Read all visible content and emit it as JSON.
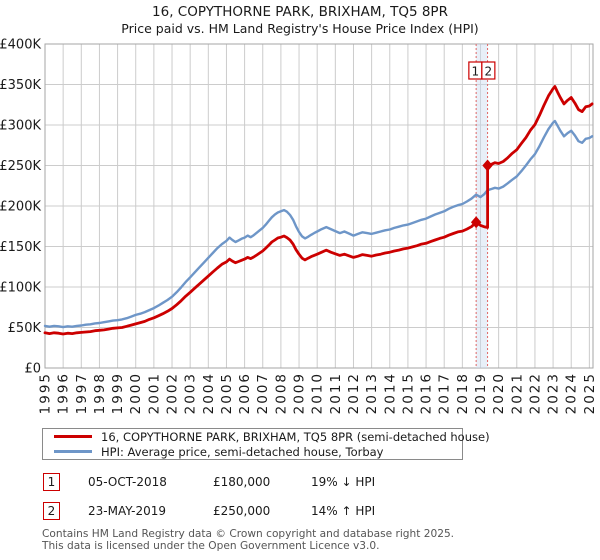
{
  "title": "16, COPYTHORNE PARK, BRIXHAM, TQ5 8PR",
  "subtitle": "Price paid vs. HM Land Registry's House Price Index (HPI)",
  "chart_data": {
    "type": "line",
    "title": "16, COPYTHORNE PARK, BRIXHAM, TQ5 8PR",
    "subtitle": "Price paid vs. HM Land Registry's House Price Index (HPI)",
    "grid": true,
    "grid_color": "#cccccc",
    "border_color": "#a6a6a6",
    "legend_position": "bottom",
    "x_axis": {
      "range": [
        1995,
        2025.2
      ],
      "ticks": [
        1995,
        1996,
        1997,
        1998,
        1999,
        2000,
        2001,
        2002,
        2003,
        2004,
        2005,
        2006,
        2007,
        2008,
        2009,
        2010,
        2011,
        2012,
        2013,
        2014,
        2015,
        2016,
        2017,
        2018,
        2019,
        2020,
        2021,
        2022,
        2023,
        2024,
        2025
      ]
    },
    "y_axis": {
      "range": [
        0,
        400
      ],
      "unit": "GBP thousands",
      "tick_values": [
        0,
        50,
        100,
        150,
        200,
        250,
        300,
        350,
        400
      ],
      "tick_labels": [
        "£0",
        "£50K",
        "£100K",
        "£150K",
        "£200K",
        "£250K",
        "£300K",
        "£350K",
        "£400K"
      ]
    },
    "series": [
      {
        "name": "16, COPYTHORNE PARK, BRIXHAM, TQ5 8PR (semi-detached house)",
        "color": "#cc0000",
        "width": 2.8,
        "points": [
          [
            1995.0,
            43.5
          ],
          [
            1995.25,
            42.5
          ],
          [
            1995.5,
            43.5
          ],
          [
            1995.75,
            43
          ],
          [
            1996.0,
            42
          ],
          [
            1996.25,
            43
          ],
          [
            1996.5,
            42.5
          ],
          [
            1996.75,
            43.5
          ],
          [
            1997.0,
            44
          ],
          [
            1997.25,
            44.5
          ],
          [
            1997.5,
            45
          ],
          [
            1997.75,
            46
          ],
          [
            1998.0,
            46.5
          ],
          [
            1998.25,
            47
          ],
          [
            1998.5,
            48
          ],
          [
            1998.75,
            49
          ],
          [
            1999.0,
            49.5
          ],
          [
            1999.25,
            50
          ],
          [
            1999.5,
            51.5
          ],
          [
            1999.75,
            53
          ],
          [
            2000.0,
            54.5
          ],
          [
            2000.25,
            56
          ],
          [
            2000.5,
            57.5
          ],
          [
            2000.75,
            60
          ],
          [
            2001.0,
            62
          ],
          [
            2001.25,
            64.5
          ],
          [
            2001.5,
            67
          ],
          [
            2001.75,
            70
          ],
          [
            2002.0,
            73.5
          ],
          [
            2002.25,
            78
          ],
          [
            2002.5,
            83
          ],
          [
            2002.75,
            88.5
          ],
          [
            2003.0,
            93.5
          ],
          [
            2003.25,
            98.5
          ],
          [
            2003.5,
            103.5
          ],
          [
            2003.75,
            108.5
          ],
          [
            2004.0,
            113.5
          ],
          [
            2004.25,
            118.5
          ],
          [
            2004.5,
            123.5
          ],
          [
            2004.75,
            128
          ],
          [
            2005.0,
            131
          ],
          [
            2005.17,
            134.5
          ],
          [
            2005.33,
            132
          ],
          [
            2005.5,
            130
          ],
          [
            2005.67,
            131.5
          ],
          [
            2005.83,
            133
          ],
          [
            2006.0,
            134.5
          ],
          [
            2006.17,
            136.5
          ],
          [
            2006.33,
            135
          ],
          [
            2006.5,
            137
          ],
          [
            2006.67,
            139.5
          ],
          [
            2006.83,
            142
          ],
          [
            2007.0,
            144.5
          ],
          [
            2007.17,
            148
          ],
          [
            2007.33,
            151.5
          ],
          [
            2007.5,
            155.5
          ],
          [
            2007.67,
            158
          ],
          [
            2007.83,
            160.5
          ],
          [
            2008.0,
            161.5
          ],
          [
            2008.17,
            163
          ],
          [
            2008.33,
            161
          ],
          [
            2008.5,
            158
          ],
          [
            2008.67,
            153
          ],
          [
            2008.83,
            146
          ],
          [
            2009.0,
            140.5
          ],
          [
            2009.17,
            135.5
          ],
          [
            2009.33,
            133.5
          ],
          [
            2009.5,
            135.5
          ],
          [
            2009.67,
            137.5
          ],
          [
            2009.83,
            139
          ],
          [
            2010.0,
            140.5
          ],
          [
            2010.25,
            143
          ],
          [
            2010.5,
            145.5
          ],
          [
            2010.75,
            143
          ],
          [
            2011.0,
            141
          ],
          [
            2011.25,
            139
          ],
          [
            2011.5,
            140.5
          ],
          [
            2011.75,
            138.5
          ],
          [
            2012.0,
            136.5
          ],
          [
            2012.25,
            138
          ],
          [
            2012.5,
            140
          ],
          [
            2012.75,
            139
          ],
          [
            2013.0,
            138
          ],
          [
            2013.25,
            139.5
          ],
          [
            2013.5,
            140.5
          ],
          [
            2013.75,
            142
          ],
          [
            2014.0,
            143
          ],
          [
            2014.25,
            144.5
          ],
          [
            2014.5,
            145.5
          ],
          [
            2014.75,
            147
          ],
          [
            2015.0,
            148
          ],
          [
            2015.25,
            149.5
          ],
          [
            2015.5,
            151
          ],
          [
            2015.75,
            153
          ],
          [
            2016.0,
            154
          ],
          [
            2016.25,
            156
          ],
          [
            2016.5,
            158
          ],
          [
            2016.75,
            160
          ],
          [
            2017.0,
            161.5
          ],
          [
            2017.25,
            164
          ],
          [
            2017.5,
            166
          ],
          [
            2017.75,
            168
          ],
          [
            2018.0,
            169
          ],
          [
            2018.25,
            171.5
          ],
          [
            2018.5,
            174.5
          ],
          [
            2018.76,
            180
          ],
          [
            2019.0,
            176
          ],
          [
            2019.2,
            174.5
          ],
          [
            2019.39,
            173.5
          ],
          [
            2019.39,
            250
          ],
          [
            2019.6,
            251.5
          ],
          [
            2019.8,
            253.5
          ],
          [
            2020.0,
            252.5
          ],
          [
            2020.25,
            255
          ],
          [
            2020.5,
            259.5
          ],
          [
            2020.75,
            265
          ],
          [
            2021.0,
            269.5
          ],
          [
            2021.25,
            277
          ],
          [
            2021.5,
            284.5
          ],
          [
            2021.75,
            293.5
          ],
          [
            2022.0,
            300.5
          ],
          [
            2022.25,
            312
          ],
          [
            2022.5,
            324.5
          ],
          [
            2022.75,
            336
          ],
          [
            2023.0,
            345
          ],
          [
            2023.1,
            347.5
          ],
          [
            2023.25,
            340.5
          ],
          [
            2023.4,
            334
          ],
          [
            2023.6,
            326
          ],
          [
            2023.8,
            330.5
          ],
          [
            2024.0,
            334
          ],
          [
            2024.2,
            327
          ],
          [
            2024.4,
            319
          ],
          [
            2024.6,
            316.5
          ],
          [
            2024.8,
            322.5
          ],
          [
            2025.0,
            323.5
          ],
          [
            2025.15,
            326
          ]
        ]
      },
      {
        "name": "HPI: Average price, semi-detached house, Torbay",
        "color": "#6e96c8",
        "width": 2.4,
        "points": [
          [
            1995.0,
            52
          ],
          [
            1995.25,
            51
          ],
          [
            1995.5,
            52
          ],
          [
            1995.75,
            51.5
          ],
          [
            1996.0,
            50.5
          ],
          [
            1996.25,
            51.5
          ],
          [
            1996.5,
            51
          ],
          [
            1996.75,
            52
          ],
          [
            1997.0,
            52.5
          ],
          [
            1997.25,
            53.5
          ],
          [
            1997.5,
            54
          ],
          [
            1997.75,
            55
          ],
          [
            1998.0,
            55.5
          ],
          [
            1998.25,
            56.5
          ],
          [
            1998.5,
            57.5
          ],
          [
            1998.75,
            58.5
          ],
          [
            1999.0,
            59
          ],
          [
            1999.25,
            60
          ],
          [
            1999.5,
            61.5
          ],
          [
            1999.75,
            63.5
          ],
          [
            2000.0,
            65.5
          ],
          [
            2000.25,
            67
          ],
          [
            2000.5,
            69
          ],
          [
            2000.75,
            71.5
          ],
          [
            2001.0,
            74
          ],
          [
            2001.25,
            77
          ],
          [
            2001.5,
            80.5
          ],
          [
            2001.75,
            84
          ],
          [
            2002.0,
            88
          ],
          [
            2002.25,
            93.5
          ],
          [
            2002.5,
            99.5
          ],
          [
            2002.75,
            106
          ],
          [
            2003.0,
            112
          ],
          [
            2003.25,
            118
          ],
          [
            2003.5,
            124
          ],
          [
            2003.75,
            130
          ],
          [
            2004.0,
            136
          ],
          [
            2004.25,
            142
          ],
          [
            2004.5,
            148
          ],
          [
            2004.75,
            153
          ],
          [
            2005.0,
            157
          ],
          [
            2005.17,
            161
          ],
          [
            2005.33,
            158
          ],
          [
            2005.5,
            155.5
          ],
          [
            2005.67,
            157.5
          ],
          [
            2005.83,
            159.5
          ],
          [
            2006.0,
            161
          ],
          [
            2006.17,
            163.5
          ],
          [
            2006.33,
            161.5
          ],
          [
            2006.5,
            164
          ],
          [
            2006.67,
            167
          ],
          [
            2006.83,
            170
          ],
          [
            2007.0,
            173
          ],
          [
            2007.17,
            177
          ],
          [
            2007.33,
            181.5
          ],
          [
            2007.5,
            186
          ],
          [
            2007.67,
            189.5
          ],
          [
            2007.83,
            192
          ],
          [
            2008.0,
            193.5
          ],
          [
            2008.17,
            195
          ],
          [
            2008.33,
            193
          ],
          [
            2008.5,
            189
          ],
          [
            2008.67,
            183
          ],
          [
            2008.83,
            175
          ],
          [
            2009.0,
            168
          ],
          [
            2009.17,
            162.5
          ],
          [
            2009.33,
            160
          ],
          [
            2009.5,
            162
          ],
          [
            2009.67,
            164.5
          ],
          [
            2009.83,
            166.5
          ],
          [
            2010.0,
            168.5
          ],
          [
            2010.25,
            171.5
          ],
          [
            2010.5,
            174
          ],
          [
            2010.75,
            171.5
          ],
          [
            2011.0,
            169
          ],
          [
            2011.25,
            166.5
          ],
          [
            2011.5,
            168.5
          ],
          [
            2011.75,
            166
          ],
          [
            2012.0,
            163.5
          ],
          [
            2012.25,
            165.5
          ],
          [
            2012.5,
            167.5
          ],
          [
            2012.75,
            166.5
          ],
          [
            2013.0,
            165.5
          ],
          [
            2013.25,
            167
          ],
          [
            2013.5,
            168.5
          ],
          [
            2013.75,
            170
          ],
          [
            2014.0,
            171
          ],
          [
            2014.25,
            173
          ],
          [
            2014.5,
            174.5
          ],
          [
            2014.75,
            176
          ],
          [
            2015.0,
            177
          ],
          [
            2015.25,
            179
          ],
          [
            2015.5,
            181
          ],
          [
            2015.75,
            183
          ],
          [
            2016.0,
            184.5
          ],
          [
            2016.25,
            187
          ],
          [
            2016.5,
            189.5
          ],
          [
            2016.75,
            191.5
          ],
          [
            2017.0,
            193.5
          ],
          [
            2017.25,
            196.5
          ],
          [
            2017.5,
            199
          ],
          [
            2017.75,
            201
          ],
          [
            2018.0,
            202.5
          ],
          [
            2018.25,
            205.5
          ],
          [
            2018.5,
            209
          ],
          [
            2018.76,
            214
          ],
          [
            2019.0,
            211
          ],
          [
            2019.2,
            214.5
          ],
          [
            2019.39,
            219.5
          ],
          [
            2019.6,
            221
          ],
          [
            2019.8,
            222.5
          ],
          [
            2020.0,
            221.5
          ],
          [
            2020.25,
            224
          ],
          [
            2020.5,
            228
          ],
          [
            2020.75,
            232.5
          ],
          [
            2021.0,
            236.5
          ],
          [
            2021.25,
            243
          ],
          [
            2021.5,
            250
          ],
          [
            2021.75,
            257.5
          ],
          [
            2022.0,
            264
          ],
          [
            2022.25,
            274
          ],
          [
            2022.5,
            285
          ],
          [
            2022.75,
            295
          ],
          [
            2023.0,
            303
          ],
          [
            2023.1,
            305
          ],
          [
            2023.25,
            299
          ],
          [
            2023.4,
            293
          ],
          [
            2023.6,
            286
          ],
          [
            2023.8,
            290
          ],
          [
            2024.0,
            293
          ],
          [
            2024.2,
            287
          ],
          [
            2024.4,
            280
          ],
          [
            2024.6,
            278
          ],
          [
            2024.8,
            283
          ],
          [
            2025.0,
            284
          ],
          [
            2025.15,
            286
          ]
        ]
      }
    ],
    "markers": [
      {
        "label": "1",
        "x": 2018.76,
        "y": 180
      },
      {
        "label": "2",
        "x": 2019.39,
        "y": 250
      }
    ],
    "annotation_band": {
      "x1": 2018.76,
      "x2": 2019.39,
      "fill": "#ccdcf0",
      "line_color": "#e06666"
    }
  },
  "transactions": [
    {
      "num": "1",
      "date": "05-OCT-2018",
      "price": "£180,000",
      "hpi": "19% ↓ HPI"
    },
    {
      "num": "2",
      "date": "23-MAY-2019",
      "price": "£250,000",
      "hpi": "14% ↑ HPI"
    }
  ],
  "footer": {
    "line1": "Contains HM Land Registry data © Crown copyright and database right 2025.",
    "line2": "This data is licensed under the Open Government Licence v3.0."
  }
}
